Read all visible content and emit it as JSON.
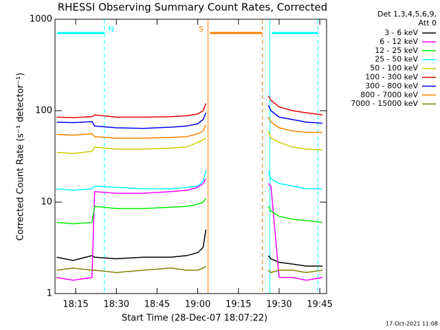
{
  "chart_data": {
    "type": "line",
    "title": "RHESSI Observing Summary Count Rates, Corrected",
    "x_label": "Start Time (28-Dec-07 18:07:22)",
    "y_label": "Corrected Count Rate (s⁻¹ detector⁻¹)",
    "legend_header": [
      "Det 1,3,4,5,6,9,",
      "Att 0"
    ],
    "footer": "17-Oct-2021 11:08",
    "log_y": true,
    "xlim": [
      7.37,
      107.5
    ],
    "ylim": [
      1,
      1000
    ],
    "xticks": [
      {
        "value": 15,
        "label": "18:15"
      },
      {
        "value": 30,
        "label": "18:30"
      },
      {
        "value": 45,
        "label": "18:45"
      },
      {
        "value": 60,
        "label": "19:00"
      },
      {
        "value": 75,
        "label": "19:15"
      },
      {
        "value": 90,
        "label": "19:30"
      },
      {
        "value": 105,
        "label": "19:45"
      }
    ],
    "yticks": [
      1,
      10,
      100,
      1000
    ],
    "intervals": [
      {
        "label": "N",
        "color": "#00ffff",
        "start": 7.37,
        "end": 25.6
      },
      {
        "label": "S",
        "color": "#ff8000",
        "start": 63.8,
        "end": 83.8
      },
      {
        "color": "#00ffff",
        "start": 86.6,
        "end": 104.3
      }
    ],
    "x": [
      8,
      14,
      21,
      22,
      30,
      40,
      50,
      56,
      60,
      62,
      63,
      64,
      86,
      87,
      90,
      95,
      100,
      106
    ],
    "series": [
      {
        "name": "3 - 6 keV",
        "color": "#000000",
        "values": [
          2.5,
          2.3,
          2.6,
          2.5,
          2.4,
          2.5,
          2.5,
          2.6,
          2.8,
          3.2,
          5,
          null,
          2.6,
          2.4,
          2.2,
          2.1,
          2,
          2
        ]
      },
      {
        "name": "6 - 12 keV",
        "color": "#ff00ff",
        "values": [
          1.5,
          1.4,
          1.5,
          13,
          12.5,
          12.5,
          13,
          13.5,
          14.5,
          16,
          18,
          null,
          16,
          15,
          1.5,
          1.5,
          1.4,
          1.5
        ]
      },
      {
        "name": "12 - 25 keV",
        "color": "#00ee00",
        "values": [
          6,
          5.8,
          6,
          9,
          8.5,
          8.5,
          8.8,
          9,
          9.5,
          10,
          11,
          null,
          9,
          8,
          7,
          6.5,
          6.3,
          6
        ]
      },
      {
        "name": "25 - 50 keV",
        "color": "#00ffff",
        "values": [
          14,
          13.5,
          14,
          15,
          14.5,
          14,
          14,
          14.5,
          15,
          17,
          22,
          null,
          22,
          18,
          16,
          15,
          14,
          14
        ]
      },
      {
        "name": "50 - 100 keV",
        "color": "#cccc00",
        "values": [
          35,
          34,
          36,
          40,
          38,
          38,
          39,
          40,
          45,
          48,
          50,
          null,
          60,
          50,
          45,
          40,
          38,
          37
        ]
      },
      {
        "name": "100 - 300 keV",
        "color": "#ee0000",
        "values": [
          85,
          84,
          86,
          90,
          85,
          85,
          86,
          88,
          92,
          100,
          120,
          null,
          145,
          130,
          110,
          100,
          95,
          90
        ]
      },
      {
        "name": "300 - 800 keV",
        "color": "#0000ff",
        "values": [
          75,
          74,
          76,
          68,
          65,
          64,
          66,
          68,
          72,
          80,
          95,
          null,
          115,
          100,
          85,
          80,
          75,
          73
        ]
      },
      {
        "name": "800 - 7000 keV",
        "color": "#ff8000",
        "values": [
          55,
          54,
          56,
          52,
          50,
          50,
          51,
          52,
          56,
          60,
          70,
          null,
          85,
          75,
          65,
          60,
          58,
          58
        ]
      },
      {
        "name": "7000 - 15000 keV",
        "color": "#808000",
        "values": [
          1.8,
          1.9,
          1.8,
          1.8,
          1.7,
          1.8,
          1.9,
          1.8,
          1.8,
          1.9,
          2,
          null,
          1.8,
          1.7,
          1.8,
          1.8,
          1.7,
          1.8
        ]
      }
    ]
  }
}
